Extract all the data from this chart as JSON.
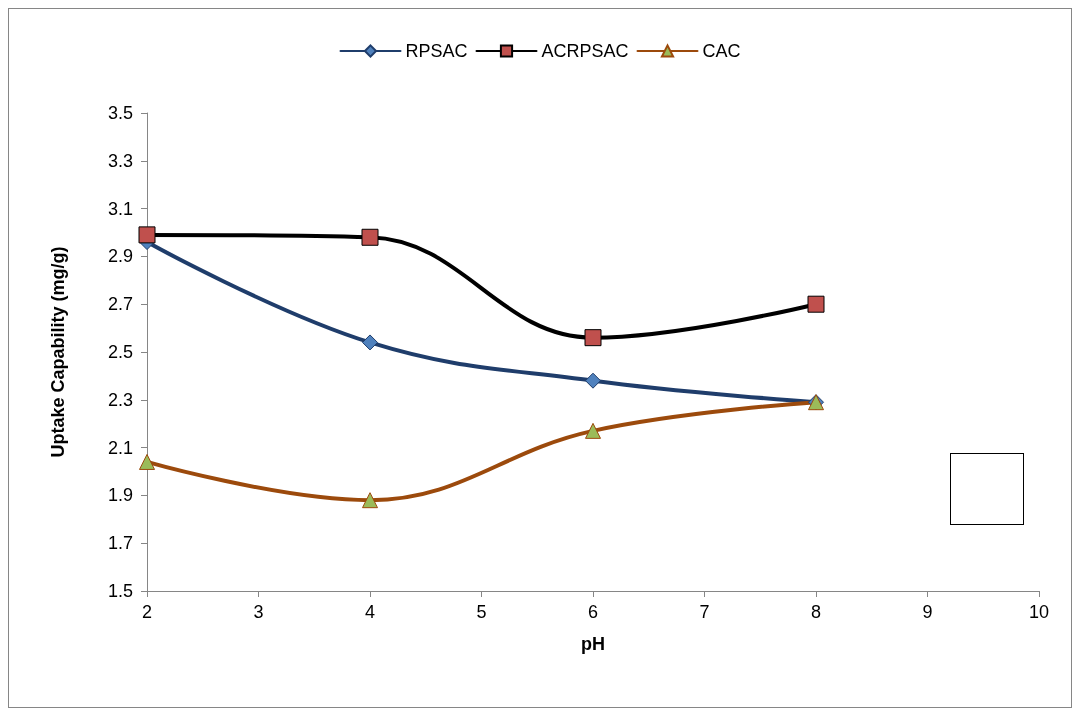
{
  "chart_data": {
    "type": "line",
    "xlabel": "pH",
    "ylabel": "Uptake Capability (mg/g)",
    "x": [
      2,
      4,
      6,
      8
    ],
    "xlim": [
      2,
      10
    ],
    "xticks": [
      2,
      3,
      4,
      5,
      6,
      7,
      8,
      9,
      10
    ],
    "ylim": [
      1.5,
      3.5
    ],
    "yticks": [
      1.5,
      1.7,
      1.9,
      2.1,
      2.3,
      2.5,
      2.7,
      2.9,
      3.1,
      3.3,
      3.5
    ],
    "grid": false,
    "legend": "top",
    "line_style": "solid",
    "series": [
      {
        "name": "RPSAC",
        "color": "#1f3d6b",
        "marker": "diamond",
        "colors": [
          "#4f81bd",
          "#4f81bd",
          "#4f81bd",
          "#4f81bd"
        ],
        "values": [
          2.96,
          2.54,
          2.38,
          2.29
        ]
      },
      {
        "name": "ACRPSAC",
        "color": "#000000",
        "marker": "square",
        "colors": [
          "#c0504d",
          "#c0504d",
          "#c0504d",
          "#c0504d"
        ],
        "values": [
          2.99,
          2.98,
          2.56,
          2.7
        ]
      },
      {
        "name": "CAC",
        "color": "#9c4a0c",
        "marker": "triangle",
        "colors": [
          "#9bbb59",
          "#9bbb59",
          "#9bbb59",
          "#9bbb59"
        ],
        "values": [
          2.04,
          1.88,
          2.17,
          2.29
        ]
      }
    ]
  }
}
